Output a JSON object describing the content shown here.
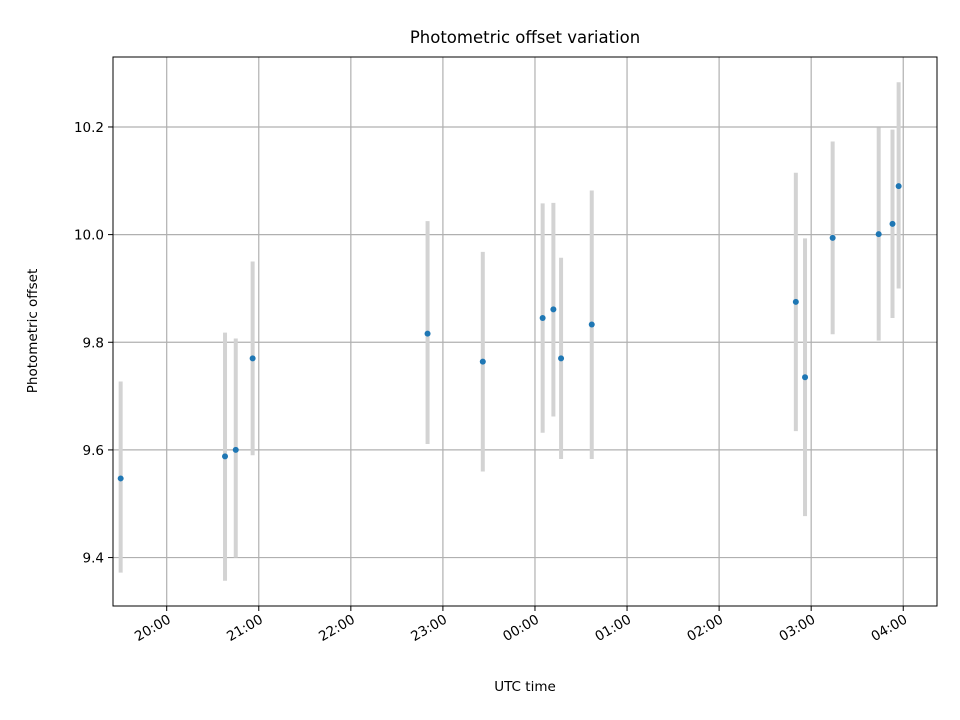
{
  "chart_data": {
    "type": "scatter",
    "title": "Photometric offset variation",
    "xlabel": "UTC time",
    "ylabel": "Photometric offset",
    "x_unit": "hours",
    "xlim": [
      "19:25",
      "04:22"
    ],
    "ylim": [
      9.31,
      10.33
    ],
    "x_ticks": [
      "20:00",
      "21:00",
      "22:00",
      "23:00",
      "00:00",
      "01:00",
      "02:00",
      "03:00",
      "04:00"
    ],
    "y_ticks": [
      "9.4",
      "9.6",
      "9.8",
      "10.0",
      "10.2"
    ],
    "grid": true,
    "colors": {
      "points": "#1f77b4",
      "errorbars": "#d3d3d3",
      "grid": "#b0b0b0"
    },
    "points": [
      {
        "x": "19:30",
        "y": 9.547,
        "ylow": 9.372,
        "yhigh": 9.727
      },
      {
        "x": "20:38",
        "y": 9.588,
        "ylow": 9.357,
        "yhigh": 9.818
      },
      {
        "x": "20:45",
        "y": 9.6,
        "ylow": 9.4,
        "yhigh": 9.807
      },
      {
        "x": "20:56",
        "y": 9.77,
        "ylow": 9.59,
        "yhigh": 9.95
      },
      {
        "x": "22:50",
        "y": 9.816,
        "ylow": 9.611,
        "yhigh": 10.025
      },
      {
        "x": "23:26",
        "y": 9.764,
        "ylow": 9.56,
        "yhigh": 9.968
      },
      {
        "x": "00:05",
        "y": 9.845,
        "ylow": 9.632,
        "yhigh": 10.058
      },
      {
        "x": "00:12",
        "y": 9.861,
        "ylow": 9.662,
        "yhigh": 10.059
      },
      {
        "x": "00:17",
        "y": 9.77,
        "ylow": 9.583,
        "yhigh": 9.957
      },
      {
        "x": "00:37",
        "y": 9.833,
        "ylow": 9.583,
        "yhigh": 10.082
      },
      {
        "x": "02:50",
        "y": 9.875,
        "ylow": 9.635,
        "yhigh": 10.115
      },
      {
        "x": "02:56",
        "y": 9.735,
        "ylow": 9.477,
        "yhigh": 9.993
      },
      {
        "x": "03:14",
        "y": 9.994,
        "ylow": 9.815,
        "yhigh": 10.173
      },
      {
        "x": "03:44",
        "y": 10.001,
        "ylow": 9.803,
        "yhigh": 10.199
      },
      {
        "x": "03:53",
        "y": 10.02,
        "ylow": 9.845,
        "yhigh": 10.195
      },
      {
        "x": "03:57",
        "y": 10.09,
        "ylow": 9.9,
        "yhigh": 10.283
      }
    ]
  }
}
